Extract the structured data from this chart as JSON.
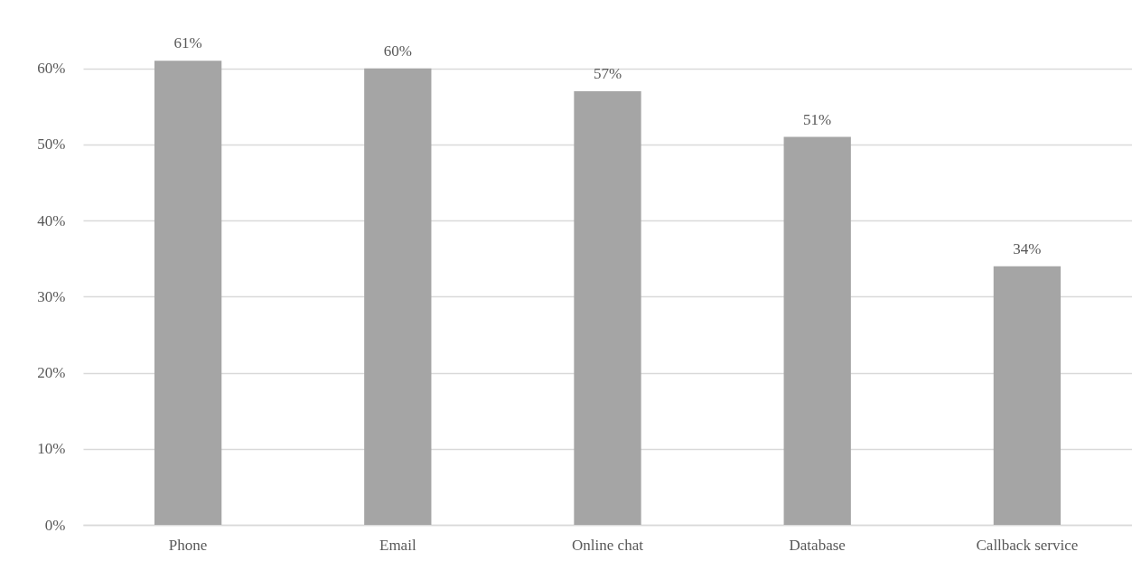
{
  "chart_data": {
    "type": "bar",
    "categories": [
      "Phone",
      "Email",
      "Online chat",
      "Database",
      "Callback service"
    ],
    "values": [
      61,
      60,
      57,
      51,
      34
    ],
    "color": "#a5a5a5",
    "value_labels": [
      "61%",
      "60%",
      "57%",
      "51%",
      "34%"
    ],
    "ylim": [
      0,
      69
    ],
    "yticks": [
      {
        "value": 0,
        "label": "0%"
      },
      {
        "value": 10,
        "label": "10%"
      },
      {
        "value": 20,
        "label": "20%"
      },
      {
        "value": 30,
        "label": "30%"
      },
      {
        "value": 40,
        "label": "40%"
      },
      {
        "value": 50,
        "label": "50%"
      },
      {
        "value": 60,
        "label": "60%"
      }
    ],
    "grid": "y"
  }
}
